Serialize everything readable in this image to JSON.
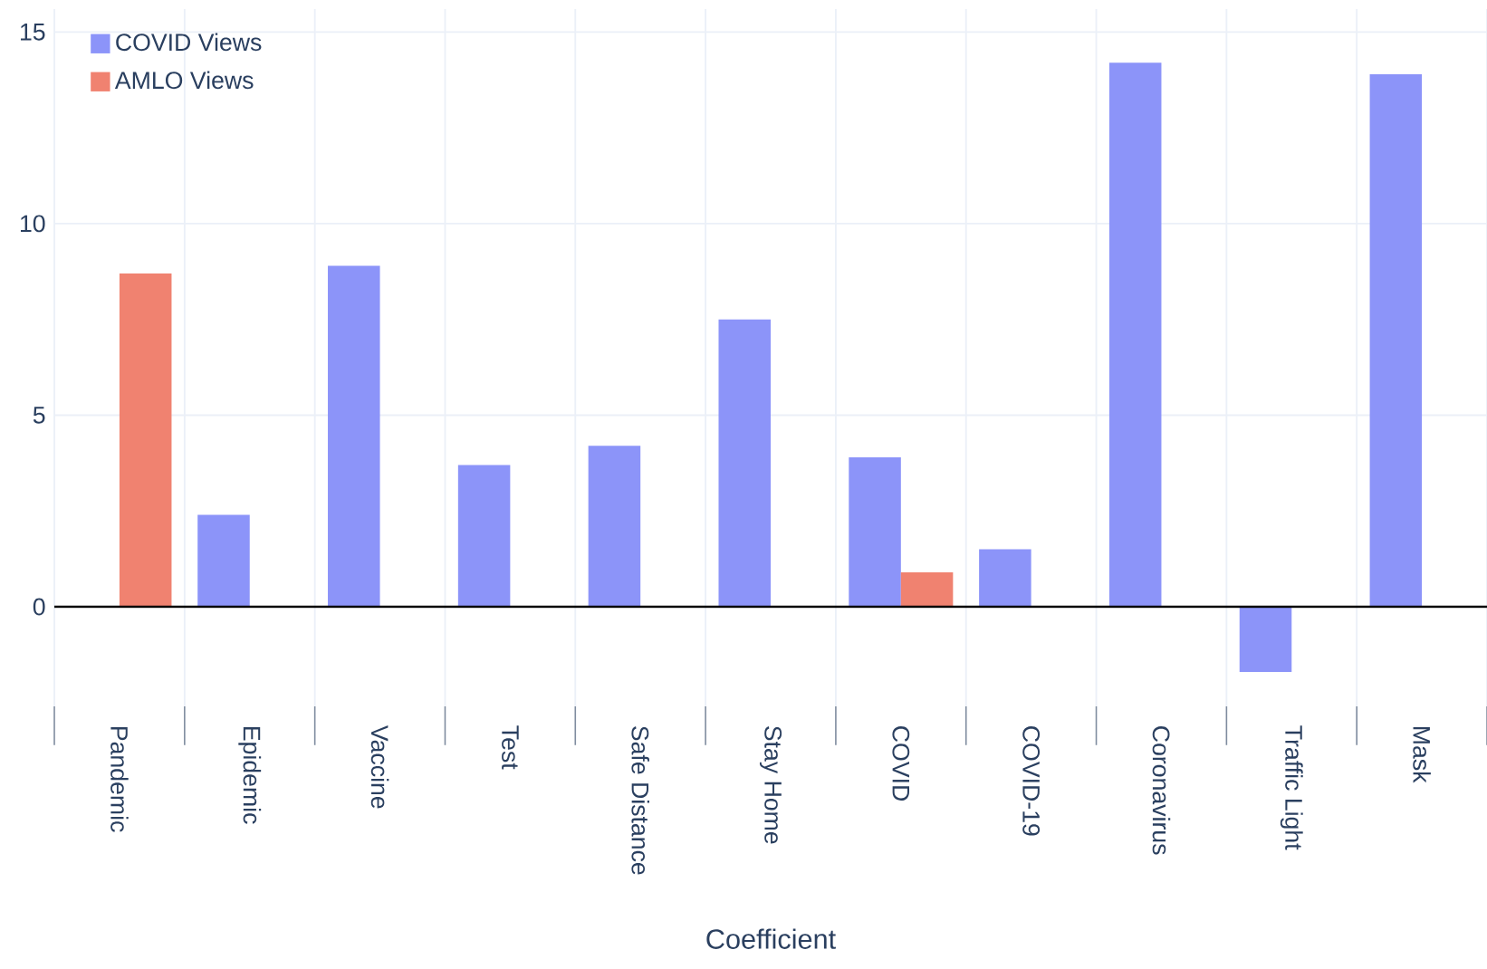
{
  "chart_data": {
    "type": "bar",
    "xlabel": "Coefficient",
    "categories": [
      "Pandemic",
      "Epidemic",
      "Vaccine",
      "Test",
      "Safe Distance",
      "Stay Home",
      "COVID",
      "COVID-19",
      "Coronavirus",
      "Traffic Light",
      "Mask"
    ],
    "series": [
      {
        "name": "COVID Views",
        "color": "#8c94f9",
        "values": [
          null,
          2.4,
          8.9,
          3.7,
          4.2,
          7.5,
          3.9,
          1.5,
          14.2,
          -1.7,
          13.9
        ]
      },
      {
        "name": "AMLO Views",
        "color": "#f08270",
        "values": [
          8.7,
          null,
          null,
          null,
          null,
          null,
          0.9,
          null,
          null,
          null,
          null
        ]
      }
    ],
    "ylim": [
      -2.6,
      15.6
    ],
    "yticks": [
      0,
      5,
      10,
      15
    ],
    "grid": true,
    "legend": "top left"
  }
}
